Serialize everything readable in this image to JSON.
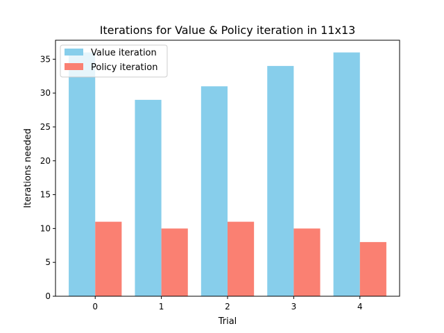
{
  "chart_data": {
    "type": "bar",
    "title": "Iterations for Value & Policy iteration in 11x13",
    "xlabel": "Trial",
    "ylabel": "Iterations needed",
    "categories": [
      "0",
      "1",
      "2",
      "3",
      "4"
    ],
    "series": [
      {
        "name": "Value iteration",
        "values": [
          36,
          29,
          31,
          34,
          36
        ],
        "color": "#87CEEB"
      },
      {
        "name": "Policy iteration",
        "values": [
          11,
          10,
          11,
          10,
          8
        ],
        "color": "#FA8072"
      }
    ],
    "ylim": [
      0,
      37.8
    ],
    "yticks": [
      0,
      5,
      10,
      15,
      20,
      25,
      30,
      35
    ],
    "grid": false,
    "legend_position": "top-left"
  }
}
